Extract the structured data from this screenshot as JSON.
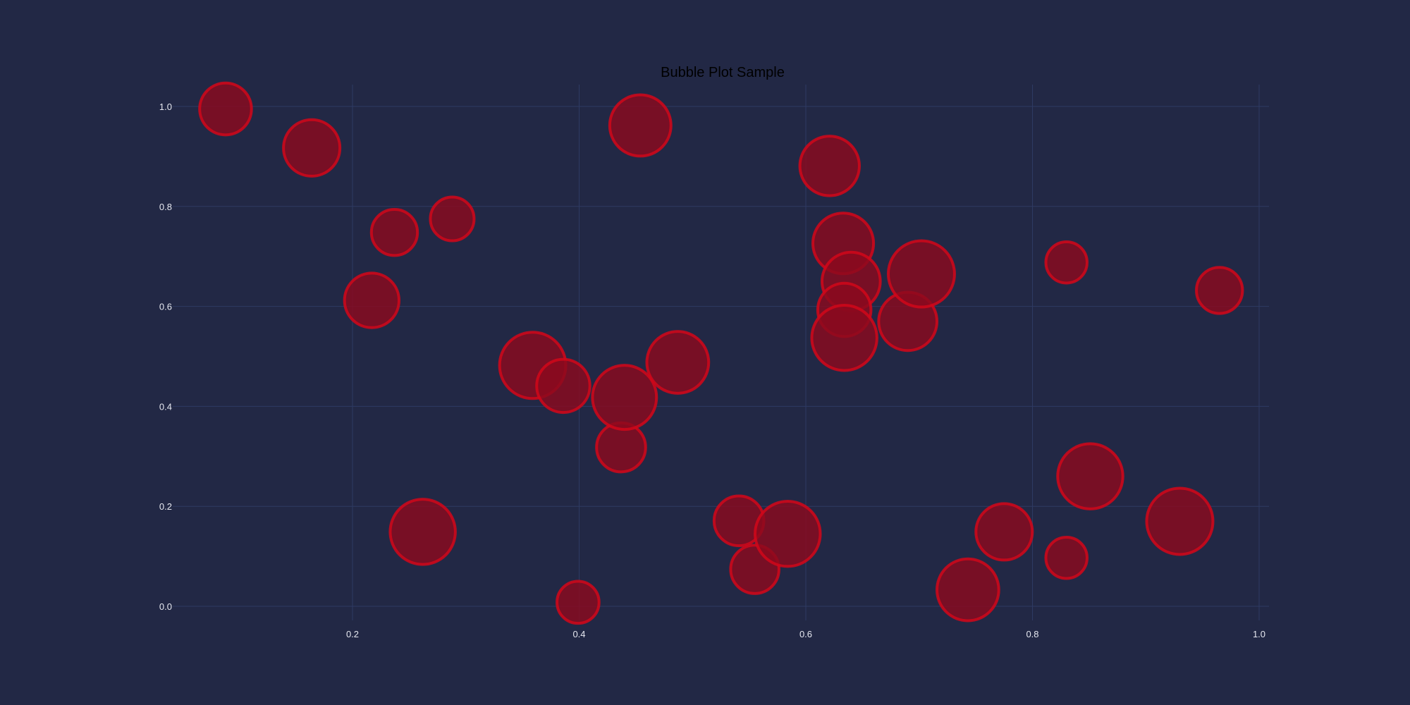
{
  "chart_data": {
    "type": "scatter",
    "subtype": "bubble",
    "title": "Bubble Plot Sample",
    "xlabel": "",
    "ylabel": "",
    "xlim": [
      0.05,
      1.02
    ],
    "ylim": [
      -0.05,
      1.05
    ],
    "x_ticks": [
      0.2,
      0.4,
      0.6,
      0.8,
      1.0
    ],
    "x_tick_labels": [
      "0.2",
      "0.4",
      "0.6",
      "0.8",
      "1.0"
    ],
    "y_ticks": [
      0.0,
      0.2,
      0.4,
      0.6,
      0.8,
      1.0
    ],
    "y_tick_labels": [
      "0.0",
      "0.2",
      "0.4",
      "0.6",
      "0.8",
      "1.0"
    ],
    "grid": true,
    "legend": "none",
    "colors": {
      "background": "#222845",
      "grid": "#2e3a63",
      "bubble_fill": "#8b0a1e",
      "bubble_edge": "#d1071a",
      "tick_text": "#e6e8f0",
      "title_text": "#000000"
    },
    "points": [
      {
        "x": 0.088,
        "y": 0.995,
        "size": 0.38
      },
      {
        "x": 0.164,
        "y": 0.917,
        "size": 0.45
      },
      {
        "x": 0.237,
        "y": 0.748,
        "size": 0.3
      },
      {
        "x": 0.288,
        "y": 0.775,
        "size": 0.27
      },
      {
        "x": 0.217,
        "y": 0.612,
        "size": 0.42
      },
      {
        "x": 0.262,
        "y": 0.149,
        "size": 0.6
      },
      {
        "x": 0.359,
        "y": 0.482,
        "size": 0.62
      },
      {
        "x": 0.386,
        "y": 0.441,
        "size": 0.4
      },
      {
        "x": 0.399,
        "y": 0.008,
        "size": 0.25
      },
      {
        "x": 0.437,
        "y": 0.318,
        "size": 0.34
      },
      {
        "x": 0.44,
        "y": 0.418,
        "size": 0.58
      },
      {
        "x": 0.454,
        "y": 0.962,
        "size": 0.53
      },
      {
        "x": 0.487,
        "y": 0.488,
        "size": 0.54
      },
      {
        "x": 0.541,
        "y": 0.171,
        "size": 0.35
      },
      {
        "x": 0.555,
        "y": 0.074,
        "size": 0.33
      },
      {
        "x": 0.584,
        "y": 0.145,
        "size": 0.6
      },
      {
        "x": 0.621,
        "y": 0.881,
        "size": 0.5
      },
      {
        "x": 0.633,
        "y": 0.726,
        "size": 0.52
      },
      {
        "x": 0.64,
        "y": 0.65,
        "size": 0.48
      },
      {
        "x": 0.634,
        "y": 0.593,
        "size": 0.4
      },
      {
        "x": 0.634,
        "y": 0.537,
        "size": 0.6
      },
      {
        "x": 0.69,
        "y": 0.57,
        "size": 0.48
      },
      {
        "x": 0.702,
        "y": 0.665,
        "size": 0.62
      },
      {
        "x": 0.743,
        "y": 0.033,
        "size": 0.54
      },
      {
        "x": 0.775,
        "y": 0.149,
        "size": 0.45
      },
      {
        "x": 0.83,
        "y": 0.688,
        "size": 0.24
      },
      {
        "x": 0.83,
        "y": 0.097,
        "size": 0.24
      },
      {
        "x": 0.851,
        "y": 0.26,
        "size": 0.6
      },
      {
        "x": 0.93,
        "y": 0.17,
        "size": 0.62
      },
      {
        "x": 0.965,
        "y": 0.632,
        "size": 0.3
      }
    ]
  }
}
